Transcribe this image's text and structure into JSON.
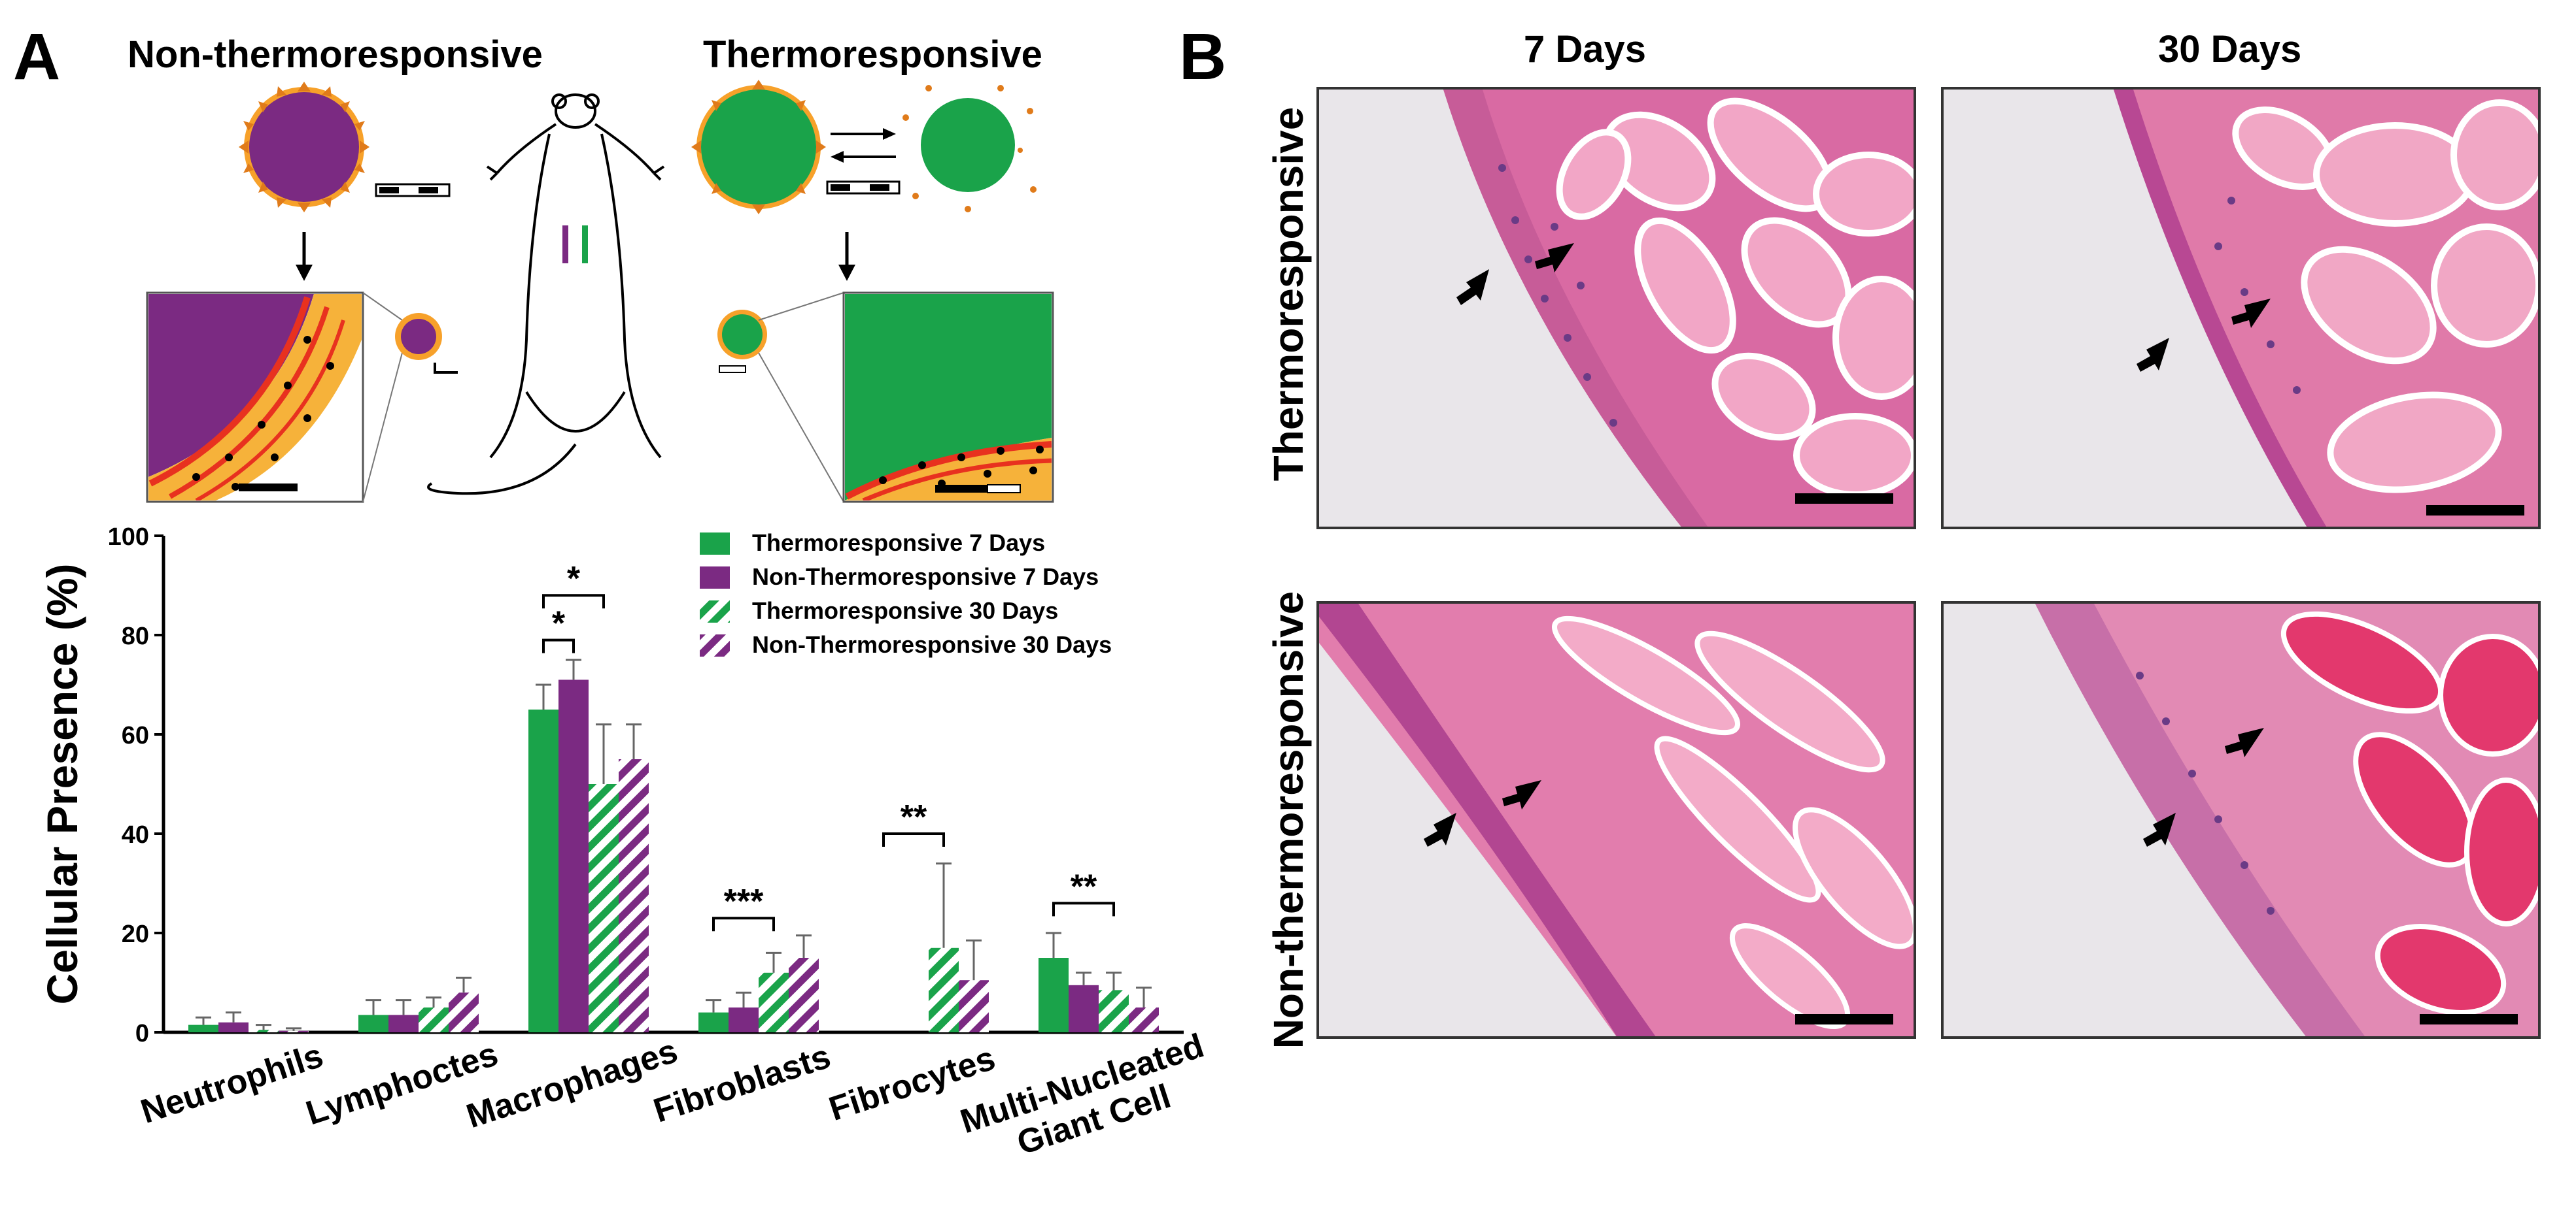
{
  "panel_a": {
    "letter": "A",
    "heading_left": "Non-thermoresponsive",
    "heading_right": "Thermoresponsive"
  },
  "panel_b": {
    "letter": "B",
    "col_left": "7 Days",
    "col_right": "30 Days",
    "row_top": "Thermoresponsive",
    "row_bottom": "Non-thermoresponsive"
  },
  "colors": {
    "green": "#1aa34a",
    "purple": "#7b2a82",
    "tissue_pink": "#e7699a",
    "background_gray": "#e8e6e9"
  },
  "chart_data": {
    "type": "bar",
    "ylabel": "Cellular Presence (%)",
    "ylim": [
      0,
      100
    ],
    "yticks": [
      0,
      20,
      40,
      60,
      80,
      100
    ],
    "categories": [
      "Neutrophils",
      "Lymphoctes",
      "Macrophages",
      "Fibroblasts",
      "Fibrocytes",
      "Multi-Nucleated Giant Cell"
    ],
    "series": [
      {
        "name": "Thermoresponsive 7 Days",
        "color": "#1aa34a",
        "pattern": "solid",
        "values": [
          1.5,
          3.5,
          65,
          4,
          0,
          15
        ],
        "errors": [
          1.5,
          3,
          5,
          2.5,
          0,
          5
        ]
      },
      {
        "name": "Non-Thermoresponsive 7 Days",
        "color": "#7b2a82",
        "pattern": "solid",
        "values": [
          2,
          3.5,
          71,
          5,
          0,
          9.5
        ],
        "errors": [
          2,
          3,
          4,
          3,
          0,
          2.5
        ]
      },
      {
        "name": "Thermoresponsive 30 Days",
        "color": "#1aa34a",
        "pattern": "hatched",
        "values": [
          0.5,
          5,
          50,
          12,
          17,
          8.5
        ],
        "errors": [
          1,
          2,
          12,
          4,
          17,
          3.5
        ]
      },
      {
        "name": "Non-Thermoresponsive 30 Days",
        "color": "#7b2a82",
        "pattern": "hatched",
        "values": [
          0.3,
          8,
          55,
          15,
          10.5,
          5
        ],
        "errors": [
          0.5,
          3,
          7,
          4.5,
          8,
          4
        ]
      }
    ],
    "significance": [
      {
        "category": 2,
        "from_series": 0,
        "to_series": 2,
        "label": "*"
      },
      {
        "category": 2,
        "from_series": 0,
        "to_series": 1,
        "label": "*"
      },
      {
        "category": 3,
        "from_series": 0,
        "to_series": 2,
        "label": "***"
      },
      {
        "category": 4,
        "from_series": 0,
        "to_series": 2,
        "label": "**"
      },
      {
        "category": 5,
        "from_series": 0,
        "to_series": 2,
        "label": "**"
      }
    ],
    "legend_position": "top-right"
  }
}
